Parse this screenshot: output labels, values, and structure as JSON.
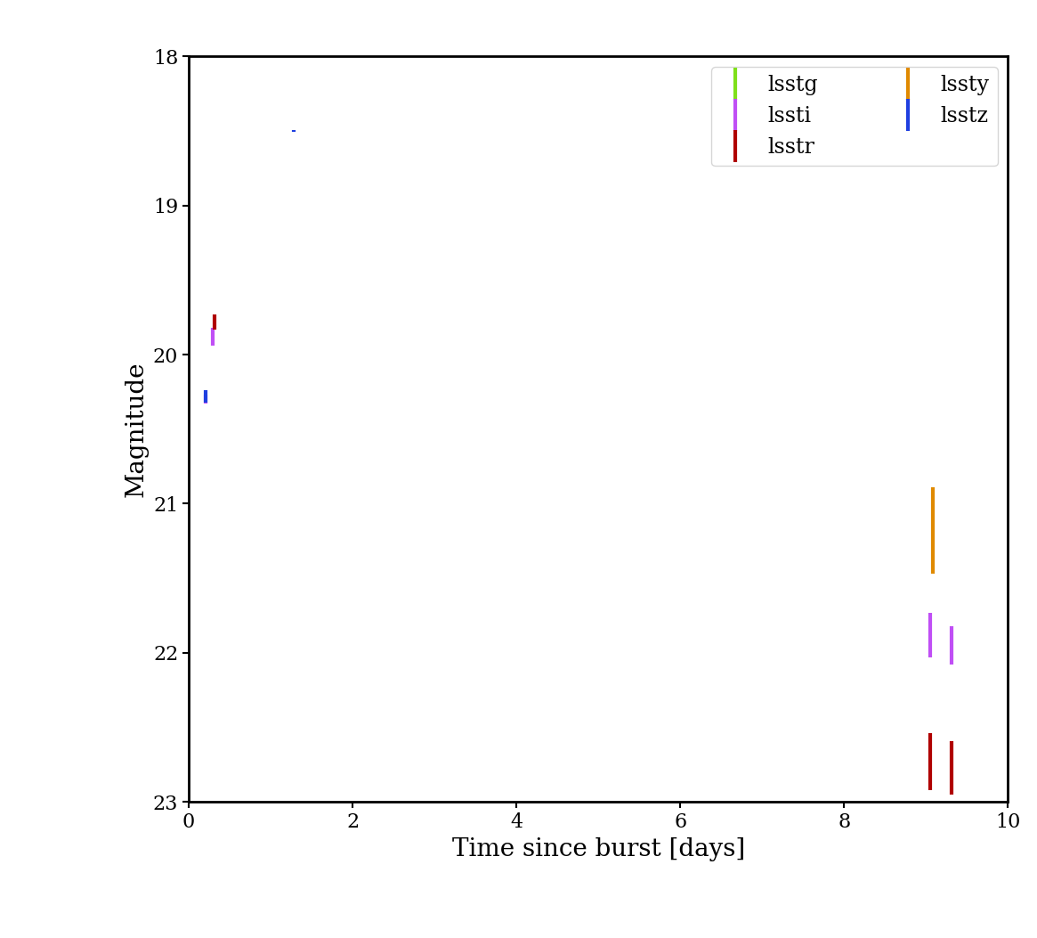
{
  "chart_data": {
    "type": "scatter",
    "x_label": "Time since burst [days]",
    "y_label": "Magnitude",
    "xlim": [
      0,
      10
    ],
    "xticks": [
      0,
      2,
      4,
      6,
      8,
      10
    ],
    "ylim": [
      23,
      18
    ],
    "yticks": [
      18,
      19,
      20,
      21,
      22,
      23
    ],
    "legend": "upper right",
    "series": [
      {
        "name": "lsstg",
        "color": "#7fe01a",
        "x": [],
        "values": [],
        "errors": []
      },
      {
        "name": "lssti",
        "color": "#c04ff5",
        "x": [
          0.21,
          0.29,
          9.05,
          9.31
        ],
        "values": [
          20.3,
          19.88,
          21.88,
          21.95
        ],
        "errors": [
          0.03,
          0.06,
          0.15,
          0.13
        ]
      },
      {
        "name": "lsstr",
        "color": "#b00000",
        "x": [
          0.32,
          9.05,
          9.31
        ],
        "values": [
          19.78,
          22.73,
          22.77
        ],
        "errors": [
          0.05,
          0.19,
          0.18
        ]
      },
      {
        "name": "lssty",
        "color": "#e08a00",
        "x": [
          9.08
        ],
        "values": [
          21.18
        ],
        "errors": [
          0.29
        ]
      },
      {
        "name": "lsstz",
        "color": "#1f3fe0",
        "x": [
          0.21,
          1.28
        ],
        "values": [
          20.28,
          18.5
        ],
        "errors": [
          0.04,
          0.005
        ]
      }
    ]
  }
}
